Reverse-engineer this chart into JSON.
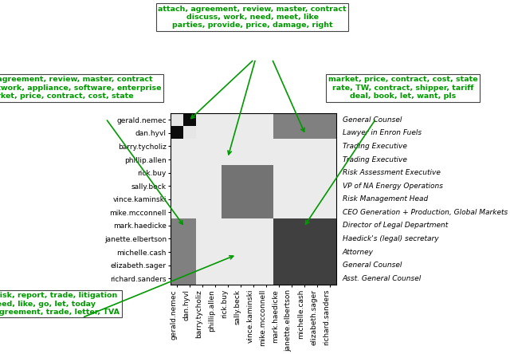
{
  "names": [
    "gerald.nemec",
    "dan.hyvl",
    "barry.tycholiz",
    "phillip.allen",
    "rick.buy",
    "sally.beck",
    "vince.kaminski",
    "mike.mcconnell",
    "mark.haedicke",
    "janette.elbertson",
    "michelle.cash",
    "elizabeth.sager",
    "richard.sanders"
  ],
  "roles": [
    "General Counsel",
    "Lawyer in Enron Fuels",
    "Trading Executive",
    "Trading Executive",
    "Risk Assessment Executive",
    "VP of NA Energy Operations",
    "Risk Management Head",
    "CEO Generation + Production, Global Markets",
    "Director of Legal Department",
    "Haedick's (legal) secretary",
    "Attorney",
    "General Counsel",
    "Asst. General Counsel"
  ],
  "matrix": [
    [
      0.1,
      0.95,
      0.08,
      0.08,
      0.08,
      0.08,
      0.08,
      0.08,
      0.5,
      0.5,
      0.5,
      0.5,
      0.5
    ],
    [
      0.95,
      0.1,
      0.08,
      0.08,
      0.08,
      0.08,
      0.08,
      0.08,
      0.5,
      0.5,
      0.5,
      0.5,
      0.5
    ],
    [
      0.08,
      0.08,
      0.08,
      0.08,
      0.08,
      0.08,
      0.08,
      0.08,
      0.08,
      0.08,
      0.08,
      0.08,
      0.08
    ],
    [
      0.08,
      0.08,
      0.08,
      0.08,
      0.08,
      0.08,
      0.08,
      0.08,
      0.08,
      0.08,
      0.08,
      0.08,
      0.08
    ],
    [
      0.08,
      0.08,
      0.08,
      0.08,
      0.55,
      0.55,
      0.55,
      0.55,
      0.08,
      0.08,
      0.08,
      0.08,
      0.08
    ],
    [
      0.08,
      0.08,
      0.08,
      0.08,
      0.55,
      0.55,
      0.55,
      0.55,
      0.08,
      0.08,
      0.08,
      0.08,
      0.08
    ],
    [
      0.08,
      0.08,
      0.08,
      0.08,
      0.55,
      0.55,
      0.55,
      0.55,
      0.08,
      0.08,
      0.08,
      0.08,
      0.08
    ],
    [
      0.08,
      0.08,
      0.08,
      0.08,
      0.55,
      0.55,
      0.55,
      0.55,
      0.08,
      0.08,
      0.08,
      0.08,
      0.08
    ],
    [
      0.5,
      0.5,
      0.08,
      0.08,
      0.08,
      0.08,
      0.08,
      0.08,
      0.75,
      0.75,
      0.75,
      0.75,
      0.75
    ],
    [
      0.5,
      0.5,
      0.08,
      0.08,
      0.08,
      0.08,
      0.08,
      0.08,
      0.75,
      0.75,
      0.75,
      0.75,
      0.75
    ],
    [
      0.5,
      0.5,
      0.08,
      0.08,
      0.08,
      0.08,
      0.08,
      0.08,
      0.75,
      0.75,
      0.75,
      0.75,
      0.75
    ],
    [
      0.5,
      0.5,
      0.08,
      0.08,
      0.08,
      0.08,
      0.08,
      0.08,
      0.75,
      0.75,
      0.75,
      0.75,
      0.75
    ],
    [
      0.5,
      0.5,
      0.08,
      0.08,
      0.08,
      0.08,
      0.08,
      0.08,
      0.75,
      0.75,
      0.75,
      0.75,
      0.75
    ]
  ],
  "green_color": "#009900",
  "text_color": "#009900",
  "box_edge_color": "#444444",
  "fontsize_labels": 6.5,
  "fontsize_roles": 6.5,
  "fontsize_annot": 6.8
}
